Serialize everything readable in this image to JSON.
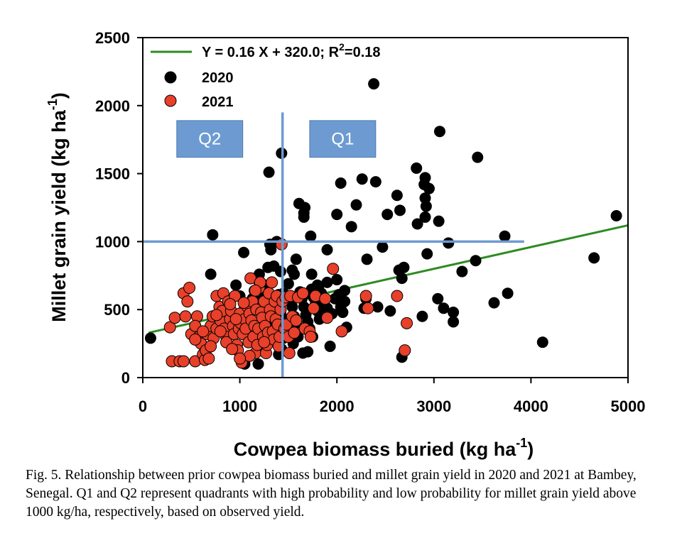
{
  "chart_data": {
    "type": "scatter",
    "xlabel": "Cowpea biomass buried (kg ha",
    "xlabel_sup": "-1",
    "xlabel_end": ")",
    "ylabel": "Millet grain yield (kg ha",
    "ylabel_sup": "-1",
    "ylabel_end": ")",
    "xlim": [
      0,
      5000
    ],
    "ylim": [
      0,
      2500
    ],
    "xticks": [
      0,
      1000,
      2000,
      3000,
      4000,
      5000
    ],
    "yticks": [
      0,
      500,
      1000,
      1500,
      2000,
      2500
    ],
    "regression": {
      "label_main": "Y = 0.16 X + 320.0; R",
      "label_sup": "2",
      "label_end": "=0.18",
      "slope": 0.16,
      "intercept": 320.0,
      "x_range": [
        60,
        5000
      ],
      "color": "#2e8b22"
    },
    "quadrant_lines": {
      "vertical_x": 1440,
      "vertical_y_range": [
        0,
        1950
      ],
      "horizontal_y": 1000,
      "horizontal_x_range": [
        0,
        3930
      ],
      "color": "#6d9bd1"
    },
    "quadrant_labels": [
      {
        "label": "Q2",
        "x_range": [
          350,
          1030
        ],
        "y_range": [
          1620,
          1890
        ]
      },
      {
        "label": "Q1",
        "x_range": [
          1720,
          2400
        ],
        "y_range": [
          1620,
          1890
        ]
      }
    ],
    "series": [
      {
        "name": "2020",
        "color": "#000000",
        "points": [
          [
            80,
            290
          ],
          [
            720,
            1050
          ],
          [
            700,
            760
          ],
          [
            1040,
            920
          ],
          [
            960,
            680
          ],
          [
            1130,
            580
          ],
          [
            1200,
            700
          ],
          [
            1290,
            810
          ],
          [
            1310,
            980
          ],
          [
            1380,
            1000
          ],
          [
            1300,
            1510
          ],
          [
            1430,
            1650
          ],
          [
            1540,
            790
          ],
          [
            1610,
            1280
          ],
          [
            1660,
            1180
          ],
          [
            1670,
            1250
          ],
          [
            1730,
            1040
          ],
          [
            1740,
            760
          ],
          [
            1830,
            550
          ],
          [
            1900,
            940
          ],
          [
            1810,
            660
          ],
          [
            1880,
            460
          ],
          [
            1930,
            230
          ],
          [
            2000,
            1200
          ],
          [
            2040,
            1430
          ],
          [
            2080,
            640
          ],
          [
            2100,
            370
          ],
          [
            2150,
            1110
          ],
          [
            2200,
            1270
          ],
          [
            2260,
            1460
          ],
          [
            2280,
            510
          ],
          [
            2300,
            580
          ],
          [
            2310,
            870
          ],
          [
            2380,
            2160
          ],
          [
            2400,
            1440
          ],
          [
            2420,
            520
          ],
          [
            2470,
            960
          ],
          [
            2520,
            1200
          ],
          [
            2550,
            490
          ],
          [
            2620,
            1340
          ],
          [
            2650,
            1230
          ],
          [
            2640,
            790
          ],
          [
            2690,
            810
          ],
          [
            2670,
            730
          ],
          [
            2670,
            150
          ],
          [
            2820,
            1540
          ],
          [
            2830,
            1130
          ],
          [
            2910,
            1470
          ],
          [
            2900,
            1420
          ],
          [
            2950,
            1390
          ],
          [
            2910,
            1320
          ],
          [
            2920,
            1260
          ],
          [
            2910,
            1180
          ],
          [
            2930,
            910
          ],
          [
            2880,
            450
          ],
          [
            3050,
            1150
          ],
          [
            3040,
            580
          ],
          [
            3060,
            1810
          ],
          [
            3100,
            510
          ],
          [
            3150,
            990
          ],
          [
            3200,
            480
          ],
          [
            3200,
            410
          ],
          [
            3290,
            780
          ],
          [
            3430,
            860
          ],
          [
            3450,
            1620
          ],
          [
            3620,
            550
          ],
          [
            3730,
            1040
          ],
          [
            3760,
            620
          ],
          [
            4120,
            260
          ],
          [
            4650,
            880
          ],
          [
            4880,
            1190
          ],
          [
            1000,
            600
          ],
          [
            1050,
            520
          ],
          [
            1100,
            470
          ],
          [
            1150,
            640
          ],
          [
            1180,
            560
          ],
          [
            1220,
            420
          ],
          [
            1260,
            680
          ],
          [
            1280,
            510
          ],
          [
            1320,
            460
          ],
          [
            1350,
            390
          ],
          [
            1380,
            560
          ],
          [
            1400,
            610
          ],
          [
            1420,
            480
          ],
          [
            1460,
            430
          ],
          [
            1480,
            370
          ],
          [
            1500,
            690
          ],
          [
            1520,
            560
          ],
          [
            1540,
            520
          ],
          [
            1560,
            450
          ],
          [
            1580,
            400
          ],
          [
            1600,
            300
          ],
          [
            1620,
            630
          ],
          [
            1640,
            580
          ],
          [
            1660,
            520
          ],
          [
            1680,
            460
          ],
          [
            1700,
            410
          ],
          [
            1720,
            360
          ],
          [
            1740,
            650
          ],
          [
            1760,
            590
          ],
          [
            1780,
            540
          ],
          [
            1800,
            490
          ],
          [
            1820,
            430
          ],
          [
            1840,
            620
          ],
          [
            1870,
            560
          ],
          [
            1900,
            510
          ],
          [
            1950,
            470
          ],
          [
            1980,
            580
          ],
          [
            2020,
            610
          ],
          [
            2040,
            520
          ],
          [
            2060,
            480
          ],
          [
            2080,
            560
          ],
          [
            1350,
            820
          ],
          [
            1420,
            780
          ],
          [
            1450,
            620
          ],
          [
            1580,
            870
          ],
          [
            1320,
            940
          ],
          [
            1250,
            620
          ],
          [
            1430,
            210
          ],
          [
            1700,
            190
          ],
          [
            1200,
            760
          ],
          [
            1190,
            100
          ],
          [
            1050,
            100
          ],
          [
            1660,
            1210
          ],
          [
            1750,
            300
          ],
          [
            1550,
            250
          ],
          [
            1650,
            180
          ],
          [
            1350,
            330
          ],
          [
            1450,
            290
          ],
          [
            1520,
            340
          ],
          [
            1400,
            170
          ],
          [
            1280,
            280
          ],
          [
            1250,
            200
          ],
          [
            1150,
            350
          ],
          [
            1500,
            580
          ],
          [
            1600,
            600
          ],
          [
            1700,
            620
          ],
          [
            1800,
            680
          ],
          [
            1900,
            700
          ],
          [
            2000,
            720
          ],
          [
            1560,
            760
          ]
        ]
      },
      {
        "name": "2021",
        "color": "#e8402a",
        "points": [
          [
            280,
            370
          ],
          [
            330,
            440
          ],
          [
            300,
            120
          ],
          [
            380,
            120
          ],
          [
            420,
            120
          ],
          [
            440,
            450
          ],
          [
            420,
            620
          ],
          [
            460,
            560
          ],
          [
            480,
            660
          ],
          [
            500,
            320
          ],
          [
            540,
            120
          ],
          [
            560,
            450
          ],
          [
            540,
            380
          ],
          [
            580,
            300
          ],
          [
            600,
            250
          ],
          [
            620,
            170
          ],
          [
            640,
            130
          ],
          [
            650,
            200
          ],
          [
            660,
            320
          ],
          [
            680,
            140
          ],
          [
            700,
            380
          ],
          [
            720,
            450
          ],
          [
            730,
            290
          ],
          [
            760,
            360
          ],
          [
            760,
            600
          ],
          [
            790,
            520
          ],
          [
            800,
            420
          ],
          [
            820,
            490
          ],
          [
            830,
            620
          ],
          [
            840,
            360
          ],
          [
            860,
            300
          ],
          [
            880,
            560
          ],
          [
            900,
            430
          ],
          [
            910,
            490
          ],
          [
            930,
            380
          ],
          [
            940,
            320
          ],
          [
            950,
            600
          ],
          [
            970,
            240
          ],
          [
            980,
            200
          ],
          [
            990,
            360
          ],
          [
            1000,
            470
          ],
          [
            1010,
            400
          ],
          [
            1020,
            110
          ],
          [
            1030,
            320
          ],
          [
            1050,
            430
          ],
          [
            1060,
            360
          ],
          [
            1080,
            520
          ],
          [
            1090,
            260
          ],
          [
            1100,
            470
          ],
          [
            1110,
            730
          ],
          [
            1120,
            420
          ],
          [
            1130,
            560
          ],
          [
            1140,
            300
          ],
          [
            1150,
            380
          ],
          [
            1160,
            180
          ],
          [
            1170,
            500
          ],
          [
            1180,
            240
          ],
          [
            1190,
            360
          ],
          [
            1200,
            660
          ],
          [
            1210,
            700
          ],
          [
            1220,
            480
          ],
          [
            1230,
            440
          ],
          [
            1240,
            300
          ],
          [
            1250,
            560
          ],
          [
            1260,
            380
          ],
          [
            1270,
            180
          ],
          [
            1280,
            240
          ],
          [
            1290,
            330
          ],
          [
            1300,
            620
          ],
          [
            1310,
            500
          ],
          [
            1320,
            450
          ],
          [
            1330,
            700
          ],
          [
            1340,
            340
          ],
          [
            1350,
            280
          ],
          [
            1360,
            560
          ],
          [
            1370,
            430
          ],
          [
            1380,
            600
          ],
          [
            1390,
            390
          ],
          [
            1400,
            230
          ],
          [
            1410,
            300
          ],
          [
            1420,
            500
          ],
          [
            1430,
            980
          ],
          [
            1440,
            560
          ],
          [
            1460,
            360
          ],
          [
            1470,
            590
          ],
          [
            1480,
            390
          ],
          [
            1500,
            300
          ],
          [
            1510,
            180
          ],
          [
            1520,
            600
          ],
          [
            1540,
            450
          ],
          [
            1560,
            330
          ],
          [
            1580,
            420
          ],
          [
            1600,
            590
          ],
          [
            1650,
            620
          ],
          [
            1670,
            360
          ],
          [
            1720,
            340
          ],
          [
            1730,
            300
          ],
          [
            1760,
            510
          ],
          [
            1780,
            600
          ],
          [
            1880,
            580
          ],
          [
            1900,
            440
          ],
          [
            1960,
            800
          ],
          [
            2050,
            340
          ],
          [
            2300,
            600
          ],
          [
            2320,
            510
          ],
          [
            2620,
            600
          ],
          [
            2700,
            200
          ],
          [
            2720,
            400
          ],
          [
            760,
            460
          ],
          [
            860,
            260
          ],
          [
            900,
            540
          ],
          [
            960,
            430
          ],
          [
            1040,
            550
          ],
          [
            1160,
            640
          ],
          [
            1250,
            260
          ],
          [
            1100,
            160
          ],
          [
            1000,
            140
          ],
          [
            920,
            210
          ],
          [
            800,
            340
          ],
          [
            700,
            230
          ],
          [
            620,
            340
          ],
          [
            540,
            280
          ]
        ]
      }
    ]
  },
  "caption": {
    "text": "Fig. 5. Relationship between prior cowpea biomass buried and millet grain yield in 2020 and 2021 at Bambey, Senegal. Q1 and Q2 represent quadrants with high probability and low probability for millet grain yield above 1000 kg/ha, respectively, based on observed yield."
  }
}
